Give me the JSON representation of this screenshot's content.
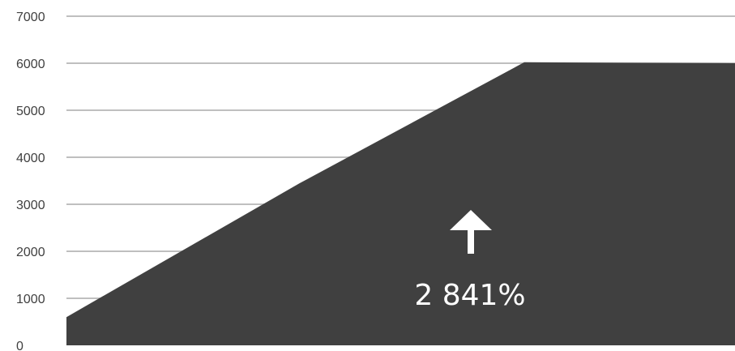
{
  "chart_data": {
    "type": "area",
    "x": [
      0,
      1,
      2,
      3
    ],
    "values": [
      600,
      3450,
      6020,
      6000
    ],
    "ylim": [
      0,
      7000
    ],
    "y_ticks": [
      "0",
      "1000",
      "2000",
      "3000",
      "4000",
      "5000",
      "6000",
      "7000"
    ],
    "grid": true,
    "legend": "none",
    "annotation": {
      "text": "2 841%",
      "icon": "up-arrow-icon"
    },
    "colors": {
      "area_fill": "#404040",
      "gridline": "#bfbfbf",
      "annotation": "#ffffff"
    }
  }
}
